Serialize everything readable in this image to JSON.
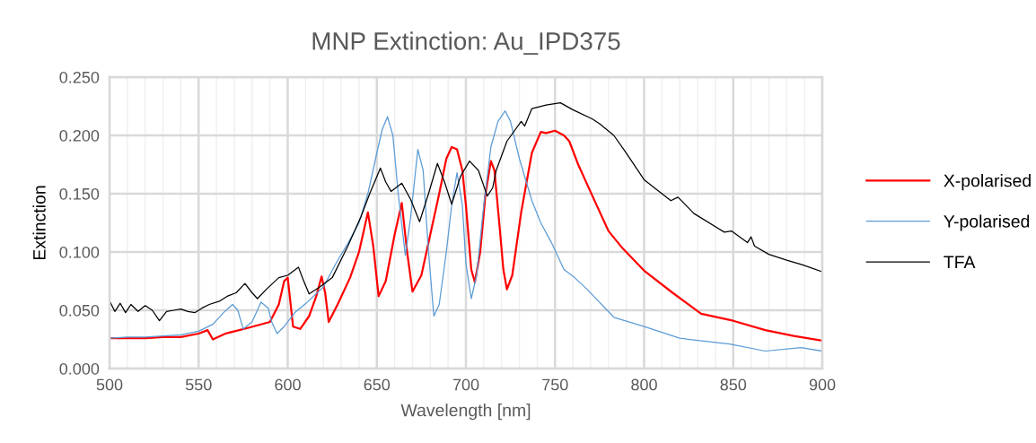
{
  "chart_data": {
    "type": "line",
    "title": "MNP Extinction: Au_IPD375",
    "xlabel": "Wavelength [nm]",
    "ylabel": "Extinction",
    "xlim": [
      500,
      900
    ],
    "ylim": [
      0,
      0.25
    ],
    "xticks": [
      500,
      {
        "value": 510,
        "label": null
      },
      {
        "value": 520,
        "label": null
      },
      {
        "value": 530,
        "label": null
      },
      {
        "value": 540,
        "label": null
      },
      550,
      {
        "value": 560,
        "label": null
      },
      {
        "value": 570,
        "label": null
      },
      {
        "value": 580,
        "label": null
      },
      {
        "value": 590,
        "label": null
      },
      600,
      {
        "value": 610,
        "label": null
      },
      {
        "value": 620,
        "label": null
      },
      {
        "value": 630,
        "label": null
      },
      {
        "value": 640,
        "label": null
      },
      650,
      {
        "value": 660,
        "label": null
      },
      {
        "value": 670,
        "label": null
      },
      {
        "value": 680,
        "label": null
      },
      {
        "value": 690,
        "label": null
      },
      700,
      {
        "value": 710,
        "label": null
      },
      {
        "value": 720,
        "label": null
      },
      {
        "value": 730,
        "label": null
      },
      {
        "value": 740,
        "label": null
      },
      750,
      {
        "value": 760,
        "label": null
      },
      {
        "value": 770,
        "label": null
      },
      {
        "value": 780,
        "label": null
      },
      {
        "value": 790,
        "label": null
      },
      800,
      {
        "value": 810,
        "label": null
      },
      {
        "value": 820,
        "label": null
      },
      {
        "value": 830,
        "label": null
      },
      {
        "value": 840,
        "label": null
      },
      850,
      {
        "value": 860,
        "label": null
      },
      {
        "value": 870,
        "label": null
      },
      {
        "value": 880,
        "label": null
      },
      {
        "value": 890,
        "label": null
      },
      900
    ],
    "yticks": [
      {
        "value": 0,
        "label": "0.000"
      },
      {
        "value": 0.05,
        "label": "0.050"
      },
      {
        "value": 0.1,
        "label": "0.100"
      },
      {
        "value": 0.15,
        "label": "0.150"
      },
      {
        "value": 0.2,
        "label": "0.200"
      },
      {
        "value": 0.25,
        "label": "0.250"
      }
    ],
    "grid": true,
    "legend": "right",
    "marker": "none",
    "line_style": "solid",
    "series": [
      {
        "name": "X-polarised",
        "color": "#ff0000",
        "x": [
          500,
          510,
          520,
          530,
          540,
          550,
          555,
          558,
          565,
          578,
          590,
          595,
          598,
          600,
          603,
          607,
          612,
          616,
          619,
          621,
          623,
          628,
          635,
          640,
          645,
          648,
          651,
          655,
          660,
          664,
          667,
          670,
          675,
          680,
          685,
          689,
          692,
          695,
          698,
          700,
          703,
          705,
          708,
          711,
          714,
          716,
          719,
          721,
          723,
          726,
          731,
          737,
          742,
          745,
          750,
          755,
          758,
          763,
          771,
          780,
          788,
          800,
          816,
          832,
          850,
          868,
          884,
          900
        ],
        "values": [
          0.026,
          0.026,
          0.026,
          0.027,
          0.027,
          0.03,
          0.033,
          0.025,
          0.03,
          0.035,
          0.04,
          0.055,
          0.075,
          0.078,
          0.036,
          0.034,
          0.045,
          0.062,
          0.079,
          0.065,
          0.04,
          0.055,
          0.078,
          0.1,
          0.134,
          0.105,
          0.062,
          0.075,
          0.115,
          0.142,
          0.1,
          0.066,
          0.08,
          0.115,
          0.15,
          0.18,
          0.19,
          0.188,
          0.17,
          0.14,
          0.085,
          0.074,
          0.1,
          0.15,
          0.178,
          0.17,
          0.12,
          0.085,
          0.068,
          0.08,
          0.134,
          0.185,
          0.203,
          0.202,
          0.204,
          0.2,
          0.195,
          0.175,
          0.148,
          0.118,
          0.103,
          0.084,
          0.065,
          0.047,
          0.041,
          0.033,
          0.028,
          0.024
        ]
      },
      {
        "name": "Y-polarised",
        "color": "#5b9bd5",
        "x": [
          500,
          510,
          520,
          530,
          540,
          550,
          558,
          564,
          569,
          572,
          575,
          580,
          585,
          589,
          591,
          594,
          598,
          604,
          611,
          620,
          627,
          634,
          640,
          645,
          650,
          653,
          656,
          659,
          662,
          666,
          669,
          673,
          676,
          679,
          682,
          685,
          689,
          692,
          695,
          698,
          700,
          703,
          706,
          710,
          714,
          718,
          722,
          725,
          730,
          737,
          742,
          748,
          755,
          761,
          768,
          783,
          800,
          820,
          848,
          868,
          888,
          900
        ],
        "values": [
          0.026,
          0.027,
          0.027,
          0.028,
          0.029,
          0.032,
          0.038,
          0.048,
          0.055,
          0.05,
          0.034,
          0.04,
          0.057,
          0.052,
          0.04,
          0.03,
          0.036,
          0.048,
          0.057,
          0.07,
          0.09,
          0.108,
          0.125,
          0.15,
          0.185,
          0.205,
          0.216,
          0.2,
          0.15,
          0.097,
          0.13,
          0.188,
          0.17,
          0.1,
          0.045,
          0.055,
          0.1,
          0.14,
          0.168,
          0.14,
          0.09,
          0.06,
          0.08,
          0.14,
          0.19,
          0.212,
          0.221,
          0.212,
          0.18,
          0.144,
          0.125,
          0.108,
          0.085,
          0.078,
          0.068,
          0.044,
          0.036,
          0.026,
          0.021,
          0.015,
          0.018,
          0.015
        ]
      },
      {
        "name": "TFA",
        "color": "#000000",
        "x": [
          500,
          503,
          506,
          509,
          512,
          516,
          520,
          524,
          528,
          532,
          536,
          540,
          544,
          548,
          552,
          556,
          562,
          566,
          571,
          576,
          580,
          583,
          588,
          595,
          600,
          606,
          609,
          612,
          618,
          625,
          634,
          641,
          646,
          652,
          655,
          658,
          664,
          669,
          674,
          679,
          684,
          688,
          692,
          697,
          702,
          707,
          712,
          715,
          717,
          723,
          731,
          733,
          737,
          745,
          753,
          760,
          771,
          775,
          783,
          789,
          800,
          815,
          819,
          828,
          845,
          849,
          858,
          860,
          862,
          870,
          880,
          889,
          900
        ],
        "values": [
          0.058,
          0.049,
          0.056,
          0.048,
          0.055,
          0.049,
          0.054,
          0.05,
          0.041,
          0.049,
          0.05,
          0.051,
          0.049,
          0.048,
          0.052,
          0.055,
          0.058,
          0.062,
          0.065,
          0.073,
          0.065,
          0.06,
          0.068,
          0.078,
          0.08,
          0.087,
          0.075,
          0.064,
          0.07,
          0.078,
          0.106,
          0.13,
          0.15,
          0.172,
          0.16,
          0.152,
          0.159,
          0.145,
          0.126,
          0.15,
          0.176,
          0.16,
          0.141,
          0.165,
          0.178,
          0.17,
          0.148,
          0.155,
          0.17,
          0.195,
          0.212,
          0.208,
          0.223,
          0.226,
          0.228,
          0.222,
          0.214,
          0.21,
          0.2,
          0.187,
          0.162,
          0.144,
          0.147,
          0.133,
          0.117,
          0.118,
          0.108,
          0.113,
          0.105,
          0.098,
          0.093,
          0.089,
          0.083
        ]
      }
    ]
  }
}
